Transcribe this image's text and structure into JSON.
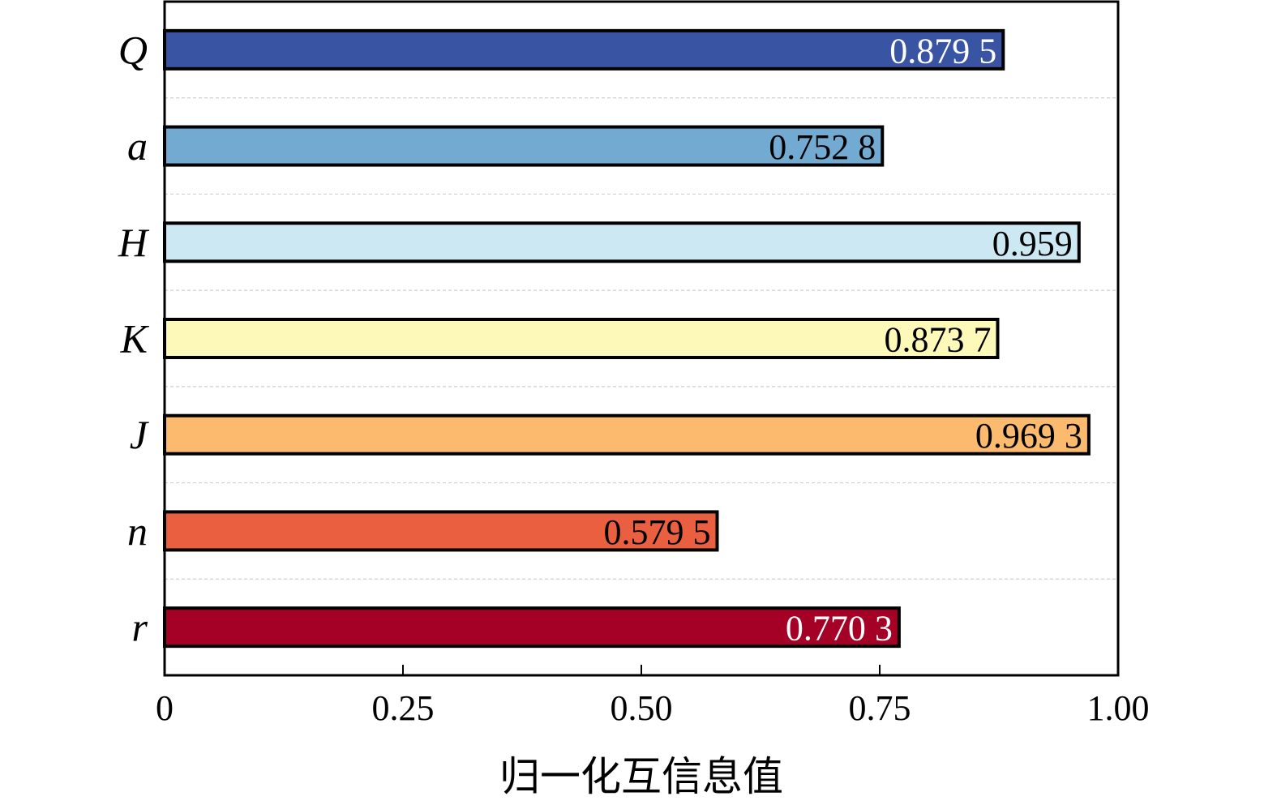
{
  "chart_data": {
    "type": "bar",
    "orientation": "horizontal",
    "categories": [
      "Q",
      "a",
      "H",
      "K",
      "J",
      "n",
      "r"
    ],
    "values": [
      0.8795,
      0.7528,
      0.959,
      0.8737,
      0.9693,
      0.5795,
      0.7703
    ],
    "data_labels": [
      "0.879 5",
      "0.752 8",
      "0.959",
      "0.873 7",
      "0.969 3",
      "0.579 5",
      "0.770 3"
    ],
    "bar_colors": [
      "#3a54a4",
      "#72aad2",
      "#cbe8f3",
      "#fdf9b8",
      "#fbba6e",
      "#ea5f40",
      "#a50026"
    ],
    "label_colors": [
      "#ffffff",
      "#000000",
      "#000000",
      "#000000",
      "#000000",
      "#000000",
      "#ffffff"
    ],
    "xlabel": "归一化互信息值",
    "xlim": [
      0,
      1
    ],
    "xticks": [
      0,
      0.25,
      0.5,
      0.75,
      1.0
    ],
    "xtick_labels": [
      "0",
      "0.25",
      "0.50",
      "0.75",
      "1.00"
    ],
    "grid": "horizontal dashed between bars",
    "legend": "none"
  }
}
